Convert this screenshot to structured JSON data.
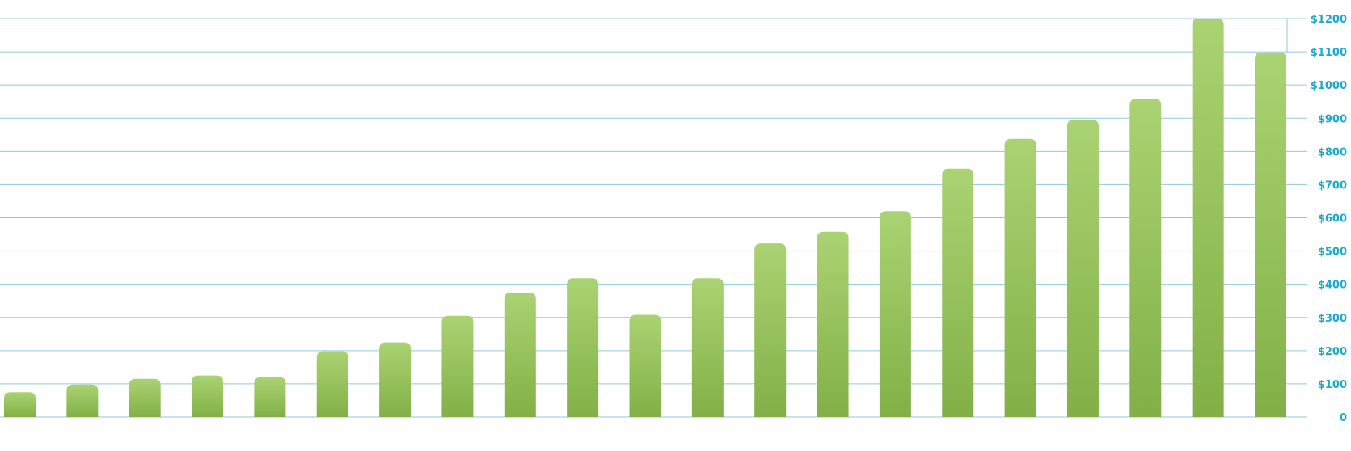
{
  "colors": {
    "gridline": "#8fc9dc",
    "tick_text": "#1fa9c9",
    "bar_top": "#aad373",
    "bar_bottom": "#82b047",
    "background": "#ffffff"
  },
  "chart_data": {
    "type": "bar",
    "title": "",
    "xlabel": "",
    "ylabel": "",
    "ylim": [
      0,
      1200
    ],
    "grid": true,
    "y_axis_position": "right",
    "y_ticks": [
      0,
      100,
      200,
      300,
      400,
      500,
      600,
      700,
      800,
      900,
      1000,
      1100,
      1200
    ],
    "y_tick_labels": [
      "0",
      "$100",
      "$200",
      "$300",
      "$400",
      "$500",
      "$600",
      "$700",
      "$800",
      "$900",
      "$1000",
      "$1100",
      "$1200"
    ],
    "values": [
      75,
      98,
      115,
      125,
      120,
      198,
      225,
      305,
      375,
      418,
      308,
      418,
      523,
      558,
      620,
      748,
      838,
      895,
      958,
      1200,
      1098
    ]
  }
}
